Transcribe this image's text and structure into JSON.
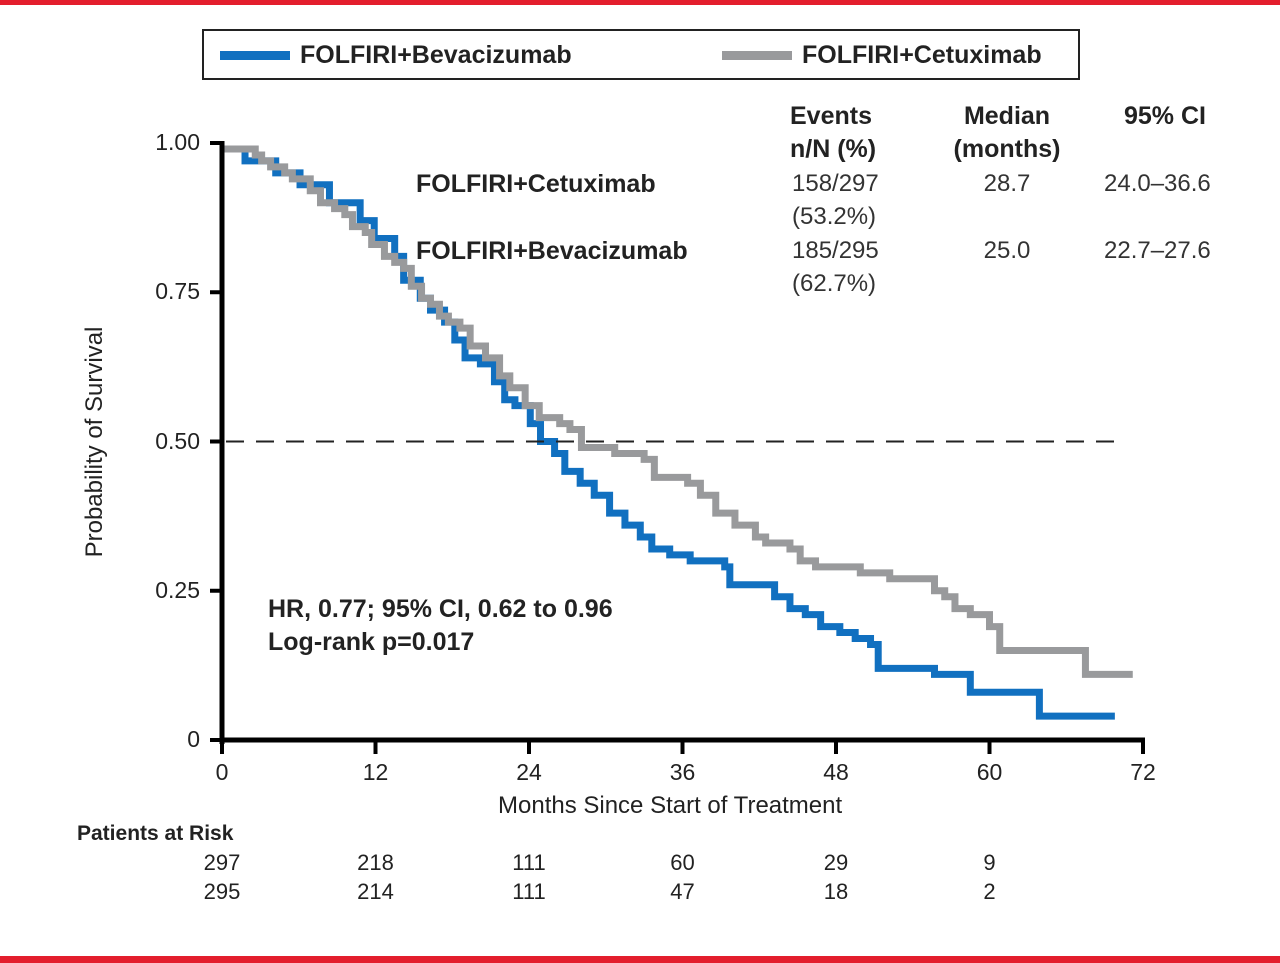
{
  "chart_data": {
    "type": "line",
    "subtype": "kaplan-meier step",
    "title": "",
    "xlabel": "Months Since Start of Treatment",
    "ylabel": "Probability of Survival",
    "xlim": [
      0,
      72
    ],
    "ylim": [
      0,
      1.0
    ],
    "x_ticks": [
      0,
      12,
      24,
      36,
      48,
      60,
      72
    ],
    "x_tick_labels": [
      "0",
      "12",
      "24",
      "36",
      "48",
      "60",
      "72"
    ],
    "y_ticks": [
      0,
      0.25,
      0.5,
      0.75,
      1.0
    ],
    "y_tick_labels": [
      "0",
      "0.25",
      "0.50",
      "0.75",
      "1.00"
    ],
    "grid": false,
    "reference_line": {
      "y": 0.5,
      "style": "dashed"
    },
    "legend": {
      "placement": "top-center",
      "entries": [
        {
          "label": "FOLFIRI+Bevacizumab",
          "color": "#1170c0"
        },
        {
          "label": "FOLFIRI+Cetuximab",
          "color": "#999a9c"
        }
      ]
    },
    "series": [
      {
        "name": "FOLFIRI+Cetuximab",
        "color": "#999a9c",
        "x": [
          0,
          1.4,
          2.6,
          3.1,
          3.8,
          4.9,
          5.5,
          6.9,
          7.7,
          8.8,
          9.6,
          10.2,
          11.2,
          11.7,
          12.7,
          13.5,
          14.2,
          14.8,
          15.6,
          16.3,
          17.0,
          17.7,
          18.6,
          19.4,
          20.6,
          21.7,
          22.5,
          23.7,
          24.8,
          26.4,
          27.2,
          28.1,
          29.6,
          30.7,
          33.0,
          33.8,
          36.4,
          37.4,
          38.6,
          40.1,
          41.7,
          42.5,
          44.4,
          45.2,
          46.4,
          49.9,
          52.2,
          55.7,
          56.5,
          57.3,
          58.5,
          60.0,
          60.8,
          67.5,
          71.2
        ],
        "y": [
          0.99,
          0.99,
          0.98,
          0.97,
          0.96,
          0.95,
          0.94,
          0.92,
          0.9,
          0.89,
          0.88,
          0.86,
          0.85,
          0.83,
          0.81,
          0.8,
          0.79,
          0.76,
          0.74,
          0.73,
          0.71,
          0.7,
          0.69,
          0.66,
          0.64,
          0.61,
          0.59,
          0.56,
          0.54,
          0.53,
          0.52,
          0.49,
          0.49,
          0.48,
          0.47,
          0.44,
          0.43,
          0.41,
          0.38,
          0.36,
          0.34,
          0.33,
          0.32,
          0.3,
          0.29,
          0.28,
          0.27,
          0.25,
          0.24,
          0.22,
          0.21,
          0.19,
          0.15,
          0.11,
          0.11
        ]
      },
      {
        "name": "FOLFIRI+Bevacizumab",
        "color": "#1170c0",
        "x": [
          0,
          1.8,
          4.2,
          6.1,
          8.4,
          10.8,
          11.9,
          13.5,
          14.2,
          15.5,
          16.3,
          17.4,
          18.2,
          19.0,
          20.2,
          21.3,
          22.1,
          22.9,
          24.1,
          24.9,
          26.0,
          26.8,
          28.0,
          29.1,
          30.3,
          31.5,
          32.7,
          33.6,
          35.0,
          36.6,
          39.3,
          39.7,
          42.8,
          43.2,
          44.4,
          45.6,
          46.8,
          48.3,
          49.5,
          50.7,
          51.3,
          55.7,
          58.5,
          63.9,
          69.8
        ],
        "y": [
          0.99,
          0.97,
          0.95,
          0.93,
          0.9,
          0.87,
          0.84,
          0.81,
          0.77,
          0.74,
          0.72,
          0.7,
          0.67,
          0.64,
          0.63,
          0.6,
          0.57,
          0.56,
          0.53,
          0.5,
          0.48,
          0.45,
          0.43,
          0.41,
          0.38,
          0.36,
          0.34,
          0.32,
          0.31,
          0.3,
          0.29,
          0.26,
          0.26,
          0.24,
          0.22,
          0.21,
          0.19,
          0.18,
          0.17,
          0.16,
          0.12,
          0.11,
          0.08,
          0.04,
          0.04
        ]
      }
    ],
    "annotations": [
      "HR, 0.77; 95% CI, 0.62 to 0.96",
      "Log-rank p=0.017"
    ]
  },
  "legend": {
    "items": [
      {
        "label": "FOLFIRI+Bevacizumab",
        "color": "#1170c0"
      },
      {
        "label": "FOLFIRI+Cetuximab",
        "color": "#999a9c"
      }
    ]
  },
  "stats_table": {
    "headers": [
      {
        "line1": "Events",
        "line2": "n/N (%)"
      },
      {
        "line1": "Median",
        "line2": "(months)"
      },
      {
        "line1": "95% CI",
        "line2": ""
      }
    ],
    "rows": [
      {
        "arm": "FOLFIRI+Cetuximab",
        "events": "158/297",
        "events_pct": "(53.2%)",
        "median": "28.7",
        "ci": "24.0–36.6"
      },
      {
        "arm": "FOLFIRI+Bevacizumab",
        "events": "185/295",
        "events_pct": "(62.7%)",
        "median": "25.0",
        "ci": "22.7–27.6"
      }
    ]
  },
  "annotation": {
    "hr": "HR, 0.77; 95% CI, 0.62 to 0.96",
    "logrank": "Log-rank p=0.017"
  },
  "patients_at_risk": {
    "title": "Patients at Risk",
    "rows": [
      {
        "arm": "FOLFIRI+Cetuximab",
        "values": [
          "297",
          "218",
          "111",
          "60",
          "29",
          "9"
        ]
      },
      {
        "arm": "FOLFIRI+Bevacizumab",
        "values": [
          "295",
          "214",
          "111",
          "47",
          "18",
          "2"
        ]
      }
    ]
  },
  "colors": {
    "frame_accent": "#e31e2d",
    "bevacizumab": "#1170c0",
    "cetuximab": "#999a9c"
  }
}
